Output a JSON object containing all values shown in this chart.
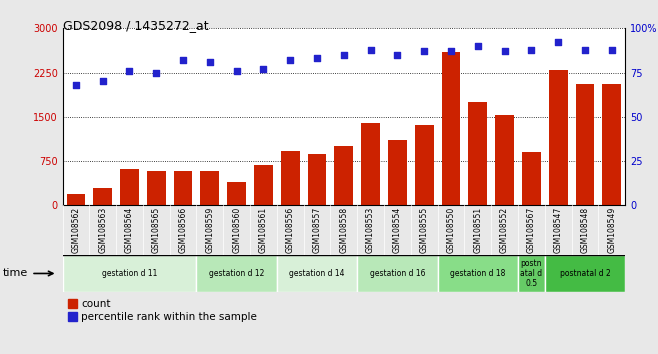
{
  "title": "GDS2098 / 1435272_at",
  "samples": [
    "GSM108562",
    "GSM108563",
    "GSM108564",
    "GSM108565",
    "GSM108566",
    "GSM108559",
    "GSM108560",
    "GSM108561",
    "GSM108556",
    "GSM108557",
    "GSM108558",
    "GSM108553",
    "GSM108554",
    "GSM108555",
    "GSM108550",
    "GSM108551",
    "GSM108552",
    "GSM108567",
    "GSM108547",
    "GSM108548",
    "GSM108549"
  ],
  "counts": [
    200,
    290,
    620,
    580,
    590,
    580,
    390,
    680,
    920,
    870,
    1010,
    1390,
    1100,
    1360,
    2600,
    1750,
    1530,
    900,
    2300,
    2060,
    2060
  ],
  "percentiles": [
    68,
    70,
    76,
    75,
    82,
    81,
    76,
    77,
    82,
    83,
    85,
    88,
    85,
    87,
    87,
    90,
    87,
    88,
    92,
    88,
    88
  ],
  "groups": [
    {
      "label": "gestation d 11",
      "start": 0,
      "end": 5,
      "color": "#d8f0d8"
    },
    {
      "label": "gestation d 12",
      "start": 5,
      "end": 8,
      "color": "#b8e8b8"
    },
    {
      "label": "gestation d 14",
      "start": 8,
      "end": 11,
      "color": "#d8f0d8"
    },
    {
      "label": "gestation d 16",
      "start": 11,
      "end": 14,
      "color": "#b8e8b8"
    },
    {
      "label": "gestation d 18",
      "start": 14,
      "end": 17,
      "color": "#88dd88"
    },
    {
      "label": "postn\natal d\n0.5",
      "start": 17,
      "end": 18,
      "color": "#66cc66"
    },
    {
      "label": "postnatal d 2",
      "start": 18,
      "end": 21,
      "color": "#44bb44"
    }
  ],
  "bar_color": "#cc2200",
  "dot_color": "#2222cc",
  "left_ylim": [
    0,
    3000
  ],
  "right_ylim": [
    0,
    100
  ],
  "left_yticks": [
    0,
    750,
    1500,
    2250,
    3000
  ],
  "right_yticks": [
    0,
    25,
    50,
    75,
    100
  ],
  "tick_label_color_left": "#cc0000",
  "tick_label_color_right": "#0000cc",
  "background_color": "#e8e8e8",
  "plot_bg_color": "#ffffff",
  "xticklabel_bg": "#cccccc"
}
